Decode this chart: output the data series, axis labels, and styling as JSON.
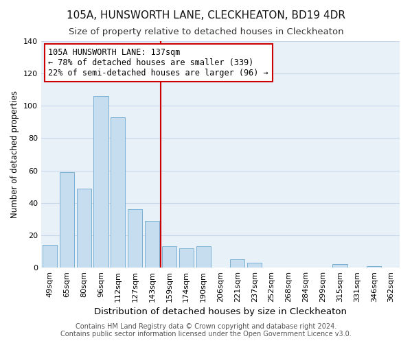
{
  "title": "105A, HUNSWORTH LANE, CLECKHEATON, BD19 4DR",
  "subtitle": "Size of property relative to detached houses in Cleckheaton",
  "xlabel": "Distribution of detached houses by size in Cleckheaton",
  "ylabel": "Number of detached properties",
  "bar_labels": [
    "49sqm",
    "65sqm",
    "80sqm",
    "96sqm",
    "112sqm",
    "127sqm",
    "143sqm",
    "159sqm",
    "174sqm",
    "190sqm",
    "206sqm",
    "221sqm",
    "237sqm",
    "252sqm",
    "268sqm",
    "284sqm",
    "299sqm",
    "315sqm",
    "331sqm",
    "346sqm",
    "362sqm"
  ],
  "bar_values": [
    14,
    59,
    49,
    106,
    93,
    36,
    29,
    13,
    12,
    13,
    0,
    5,
    3,
    0,
    0,
    0,
    0,
    2,
    0,
    1,
    0
  ],
  "bar_color": "#c6ddf0",
  "bar_edge_color": "#7ab0d4",
  "vline_color": "#cc0000",
  "vline_x": 6.5,
  "annotation_text": "105A HUNSWORTH LANE: 137sqm\n← 78% of detached houses are smaller (339)\n22% of semi-detached houses are larger (96) →",
  "annotation_box_edge": "#cc0000",
  "annotation_box_face": "#ffffff",
  "ylim": [
    0,
    140
  ],
  "yticks": [
    0,
    20,
    40,
    60,
    80,
    100,
    120,
    140
  ],
  "footer_line1": "Contains HM Land Registry data © Crown copyright and database right 2024.",
  "footer_line2": "Contains public sector information licensed under the Open Government Licence v3.0.",
  "bg_color": "#ffffff",
  "plot_bg_color": "#e8f0f8",
  "grid_color": "#c8d8e8",
  "title_fontsize": 11,
  "subtitle_fontsize": 9.5,
  "xlabel_fontsize": 9.5,
  "ylabel_fontsize": 8.5,
  "tick_fontsize": 8,
  "footer_fontsize": 7,
  "annotation_fontsize": 8.5
}
